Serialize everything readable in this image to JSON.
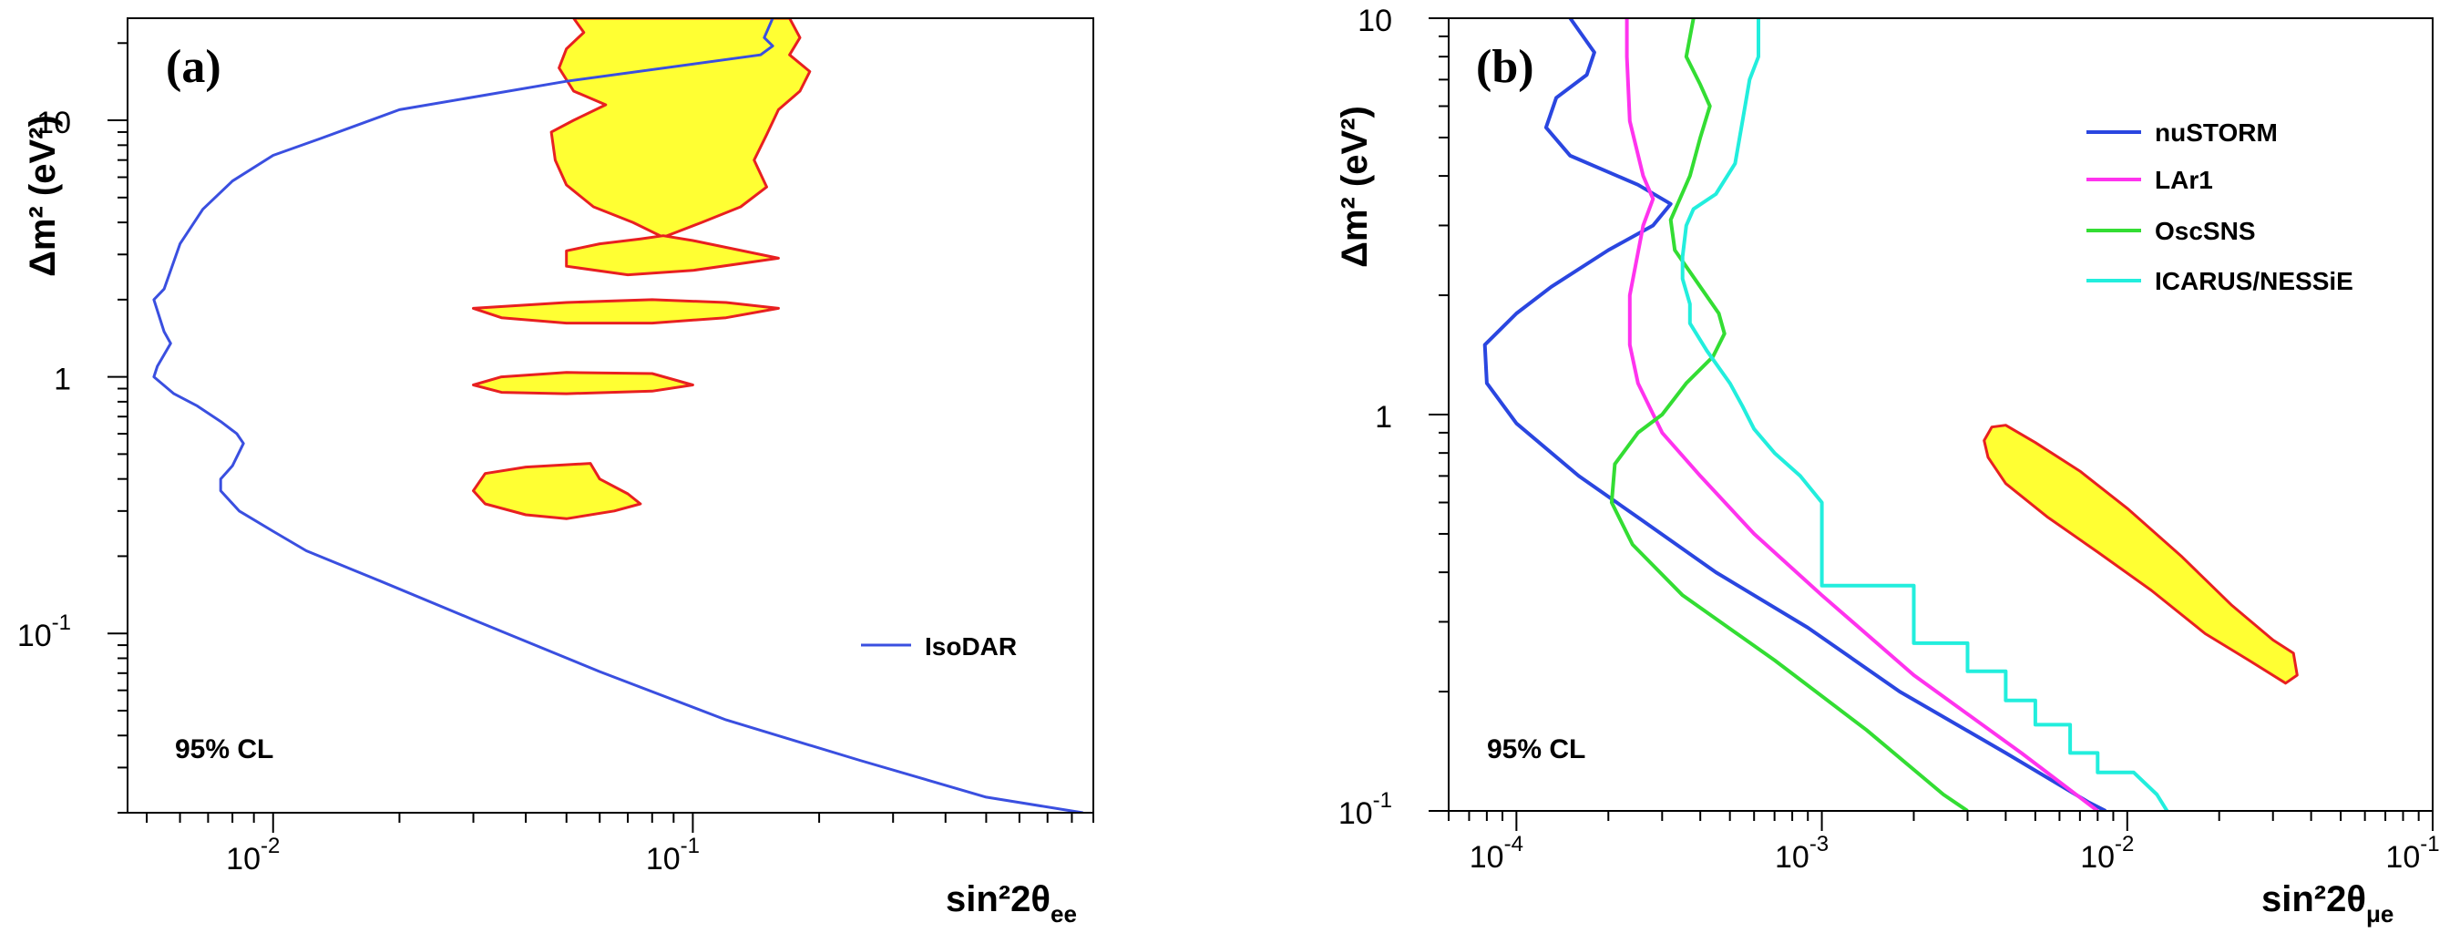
{
  "chart_data": [
    {
      "panel_label": "(a)",
      "type": "line",
      "xscale": "log",
      "yscale": "log",
      "xlim": [
        0.0045,
        0.9
      ],
      "ylim": [
        0.02,
        25
      ],
      "xlabel": "sin²2θ",
      "xlabel_sub": "ee",
      "ylabel": "Δm² (eV²)",
      "x_ticks": [
        {
          "value": 0.01,
          "base": "10",
          "exp": "-2"
        },
        {
          "value": 0.1,
          "base": "10",
          "exp": "-1"
        }
      ],
      "y_ticks": [
        {
          "value": 0.1,
          "base": "10",
          "exp": "-1"
        },
        {
          "value": 1,
          "base": "1",
          "exp": ""
        },
        {
          "value": 10,
          "base": "10",
          "exp": ""
        }
      ],
      "annotation": "95% CL",
      "legend": [
        {
          "name": "IsoDAR",
          "color": "#3a4fe0"
        }
      ],
      "series": [
        {
          "name": "IsoDAR",
          "color": "#3a4fe0",
          "points": [
            [
              0.155,
              25
            ],
            [
              0.148,
              21
            ],
            [
              0.155,
              19.5
            ],
            [
              0.145,
              18
            ],
            [
              0.05,
              14.2
            ],
            [
              0.02,
              11
            ],
            [
              0.013,
              8.5
            ],
            [
              0.01,
              7.3
            ],
            [
              0.008,
              5.8
            ],
            [
              0.0068,
              4.5
            ],
            [
              0.006,
              3.3
            ],
            [
              0.0055,
              2.2
            ],
            [
              0.0052,
              2
            ],
            [
              0.0055,
              1.5
            ],
            [
              0.0057,
              1.35
            ],
            [
              0.0053,
              1.1
            ],
            [
              0.0052,
              1.0
            ],
            [
              0.0058,
              0.86
            ],
            [
              0.0066,
              0.77
            ],
            [
              0.0075,
              0.67
            ],
            [
              0.0082,
              0.6
            ],
            [
              0.0085,
              0.55
            ],
            [
              0.008,
              0.45
            ],
            [
              0.0075,
              0.4
            ],
            [
              0.0075,
              0.36
            ],
            [
              0.0083,
              0.3
            ],
            [
              0.01,
              0.25
            ],
            [
              0.012,
              0.21
            ],
            [
              0.018,
              0.16
            ],
            [
              0.03,
              0.113
            ],
            [
              0.06,
              0.071
            ],
            [
              0.12,
              0.046
            ],
            [
              0.25,
              0.032
            ],
            [
              0.5,
              0.023
            ],
            [
              0.85,
              0.02
            ]
          ]
        }
      ],
      "regions": [
        {
          "name": "allowed-region-high",
          "fill": "#ffff33",
          "stroke": "#e82020",
          "points": [
            [
              0.052,
              25
            ],
            [
              0.055,
              22
            ],
            [
              0.05,
              19
            ],
            [
              0.048,
              16
            ],
            [
              0.052,
              13
            ],
            [
              0.062,
              11.5
            ],
            [
              0.052,
              10
            ],
            [
              0.046,
              9
            ],
            [
              0.047,
              7
            ],
            [
              0.05,
              5.6
            ],
            [
              0.058,
              4.6
            ],
            [
              0.072,
              4
            ],
            [
              0.085,
              3.5
            ],
            [
              0.105,
              4
            ],
            [
              0.13,
              4.6
            ],
            [
              0.15,
              5.5
            ],
            [
              0.14,
              7
            ],
            [
              0.15,
              8.8
            ],
            [
              0.16,
              11
            ],
            [
              0.18,
              13
            ],
            [
              0.19,
              15.5
            ],
            [
              0.17,
              18
            ],
            [
              0.18,
              21
            ],
            [
              0.17,
              25
            ]
          ]
        },
        {
          "name": "allowed-region-2",
          "fill": "#ffff33",
          "stroke": "#e82020",
          "points": [
            [
              0.05,
              3.1
            ],
            [
              0.06,
              3.3
            ],
            [
              0.075,
              3.45
            ],
            [
              0.085,
              3.55
            ],
            [
              0.1,
              3.4
            ],
            [
              0.16,
              2.9
            ],
            [
              0.1,
              2.6
            ],
            [
              0.07,
              2.5
            ],
            [
              0.05,
              2.7
            ]
          ]
        },
        {
          "name": "allowed-region-3",
          "fill": "#ffff33",
          "stroke": "#e82020",
          "points": [
            [
              0.03,
              1.85
            ],
            [
              0.05,
              1.95
            ],
            [
              0.08,
              2.0
            ],
            [
              0.12,
              1.95
            ],
            [
              0.16,
              1.85
            ],
            [
              0.12,
              1.7
            ],
            [
              0.08,
              1.62
            ],
            [
              0.05,
              1.62
            ],
            [
              0.035,
              1.7
            ]
          ]
        },
        {
          "name": "allowed-region-4",
          "fill": "#ffff33",
          "stroke": "#e82020",
          "points": [
            [
              0.03,
              0.93
            ],
            [
              0.035,
              1.0
            ],
            [
              0.05,
              1.04
            ],
            [
              0.08,
              1.03
            ],
            [
              0.1,
              0.93
            ],
            [
              0.08,
              0.88
            ],
            [
              0.05,
              0.86
            ],
            [
              0.035,
              0.87
            ]
          ]
        },
        {
          "name": "allowed-region-5",
          "fill": "#ffff33",
          "stroke": "#e82020",
          "points": [
            [
              0.03,
              0.36
            ],
            [
              0.032,
              0.42
            ],
            [
              0.04,
              0.445
            ],
            [
              0.057,
              0.46
            ],
            [
              0.06,
              0.4
            ],
            [
              0.07,
              0.35
            ],
            [
              0.075,
              0.32
            ],
            [
              0.065,
              0.3
            ],
            [
              0.05,
              0.28
            ],
            [
              0.04,
              0.29
            ],
            [
              0.032,
              0.32
            ]
          ]
        }
      ]
    },
    {
      "panel_label": "(b)",
      "type": "line",
      "xscale": "log",
      "yscale": "log",
      "xlim": [
        6e-05,
        0.1
      ],
      "ylim": [
        0.1,
        10
      ],
      "xlabel": "sin²2θ",
      "xlabel_sub": "μe",
      "ylabel": "Δm² (eV²)",
      "x_ticks": [
        {
          "value": 0.0001,
          "base": "10",
          "exp": "-4"
        },
        {
          "value": 0.001,
          "base": "10",
          "exp": "-3"
        },
        {
          "value": 0.01,
          "base": "10",
          "exp": "-2"
        },
        {
          "value": 0.1,
          "base": "10",
          "exp": "-1"
        }
      ],
      "y_ticks": [
        {
          "value": 0.1,
          "base": "10",
          "exp": "-1"
        },
        {
          "value": 1,
          "base": "1",
          "exp": ""
        },
        {
          "value": 10,
          "base": "10",
          "exp": ""
        }
      ],
      "annotation": "95% CL",
      "legend": [
        {
          "name": "nuSTORM",
          "color": "#2a46e0"
        },
        {
          "name": "LAr1",
          "color": "#ff33ee"
        },
        {
          "name": "OscSNS",
          "color": "#33dd33"
        },
        {
          "name": "ICARUS/NESSiE",
          "color": "#22eedd"
        }
      ],
      "series": [
        {
          "name": "nuSTORM",
          "color": "#2a46e0",
          "points": [
            [
              0.00015,
              10
            ],
            [
              0.00018,
              8.2
            ],
            [
              0.00017,
              7.2
            ],
            [
              0.000135,
              6.3
            ],
            [
              0.000125,
              5.3
            ],
            [
              0.00015,
              4.5
            ],
            [
              0.00025,
              3.8
            ],
            [
              0.00032,
              3.4
            ],
            [
              0.00028,
              3.0
            ],
            [
              0.0002,
              2.6
            ],
            [
              0.00013,
              2.1
            ],
            [
              0.0001,
              1.8
            ],
            [
              7.88e-05,
              1.5
            ],
            [
              8e-05,
              1.2
            ],
            [
              0.0001,
              0.95
            ],
            [
              0.00016,
              0.7
            ],
            [
              0.00025,
              0.55
            ],
            [
              0.00045,
              0.4
            ],
            [
              0.0009,
              0.29
            ],
            [
              0.0018,
              0.2
            ],
            [
              0.004,
              0.14
            ],
            [
              0.0075,
              0.105
            ],
            [
              0.0085,
              0.1
            ]
          ]
        },
        {
          "name": "LAr1",
          "color": "#ff33ee",
          "points": [
            [
              0.00023,
              10
            ],
            [
              0.00023,
              8
            ],
            [
              0.000235,
              5.5
            ],
            [
              0.00026,
              4
            ],
            [
              0.00028,
              3.5
            ],
            [
              0.00026,
              3
            ],
            [
              0.000235,
              2
            ],
            [
              0.000235,
              1.5
            ],
            [
              0.00025,
              1.2
            ],
            [
              0.0003,
              0.9
            ],
            [
              0.0004,
              0.7
            ],
            [
              0.0006,
              0.5
            ],
            [
              0.001,
              0.35
            ],
            [
              0.002,
              0.22
            ],
            [
              0.0045,
              0.14
            ],
            [
              0.008,
              0.1
            ]
          ]
        },
        {
          "name": "OscSNS",
          "color": "#33dd33",
          "points": [
            [
              0.00038,
              10
            ],
            [
              0.00036,
              8
            ],
            [
              0.0004,
              6.8
            ],
            [
              0.00043,
              6
            ],
            [
              0.0004,
              5
            ],
            [
              0.00037,
              4
            ],
            [
              0.00032,
              3.1
            ],
            [
              0.00033,
              2.6
            ],
            [
              0.0004,
              2.1
            ],
            [
              0.00046,
              1.8
            ],
            [
              0.00048,
              1.6
            ],
            [
              0.00044,
              1.4
            ],
            [
              0.00036,
              1.2
            ],
            [
              0.0003,
              1.0
            ],
            [
              0.00025,
              0.9
            ],
            [
              0.00021,
              0.75
            ],
            [
              0.000205,
              0.6
            ],
            [
              0.00024,
              0.47
            ],
            [
              0.00035,
              0.35
            ],
            [
              0.0007,
              0.24
            ],
            [
              0.0014,
              0.16
            ],
            [
              0.0025,
              0.11
            ],
            [
              0.003,
              0.1
            ]
          ]
        },
        {
          "name": "ICARUS/NESSiE",
          "color": "#22eedd",
          "points": [
            [
              0.00062,
              10
            ],
            [
              0.00062,
              8
            ],
            [
              0.00058,
              7
            ],
            [
              0.00055,
              5.5
            ],
            [
              0.00052,
              4.3
            ],
            [
              0.00045,
              3.6
            ],
            [
              0.00038,
              3.3
            ],
            [
              0.00036,
              3.0
            ],
            [
              0.00035,
              2.5
            ],
            [
              0.00035,
              2.2
            ],
            [
              0.00037,
              1.9
            ],
            [
              0.00037,
              1.7
            ],
            [
              0.00042,
              1.45
            ],
            [
              0.0005,
              1.2
            ],
            [
              0.00055,
              1.05
            ],
            [
              0.0006,
              0.92
            ],
            [
              0.0007,
              0.8
            ],
            [
              0.00085,
              0.7
            ],
            [
              0.001,
              0.6
            ],
            [
              0.001,
              0.37
            ],
            [
              0.002,
              0.37
            ],
            [
              0.002,
              0.265
            ],
            [
              0.003,
              0.265
            ],
            [
              0.003,
              0.225
            ],
            [
              0.004,
              0.225
            ],
            [
              0.004,
              0.19
            ],
            [
              0.005,
              0.19
            ],
            [
              0.005,
              0.165
            ],
            [
              0.0065,
              0.165
            ],
            [
              0.0065,
              0.14
            ],
            [
              0.008,
              0.14
            ],
            [
              0.008,
              0.125
            ],
            [
              0.0105,
              0.125
            ],
            [
              0.0125,
              0.11
            ],
            [
              0.0135,
              0.1
            ]
          ]
        }
      ],
      "regions": [
        {
          "name": "allowed-region",
          "fill": "#ffff33",
          "stroke": "#e82020",
          "points": [
            [
              0.0036,
              0.93
            ],
            [
              0.004,
              0.94
            ],
            [
              0.005,
              0.85
            ],
            [
              0.007,
              0.72
            ],
            [
              0.01,
              0.58
            ],
            [
              0.015,
              0.44
            ],
            [
              0.022,
              0.33
            ],
            [
              0.03,
              0.27
            ],
            [
              0.035,
              0.25
            ],
            [
              0.036,
              0.22
            ],
            [
              0.033,
              0.21
            ],
            [
              0.025,
              0.24
            ],
            [
              0.018,
              0.28
            ],
            [
              0.012,
              0.36
            ],
            [
              0.008,
              0.45
            ],
            [
              0.0055,
              0.55
            ],
            [
              0.004,
              0.67
            ],
            [
              0.0035,
              0.78
            ],
            [
              0.0034,
              0.86
            ]
          ]
        }
      ]
    }
  ]
}
